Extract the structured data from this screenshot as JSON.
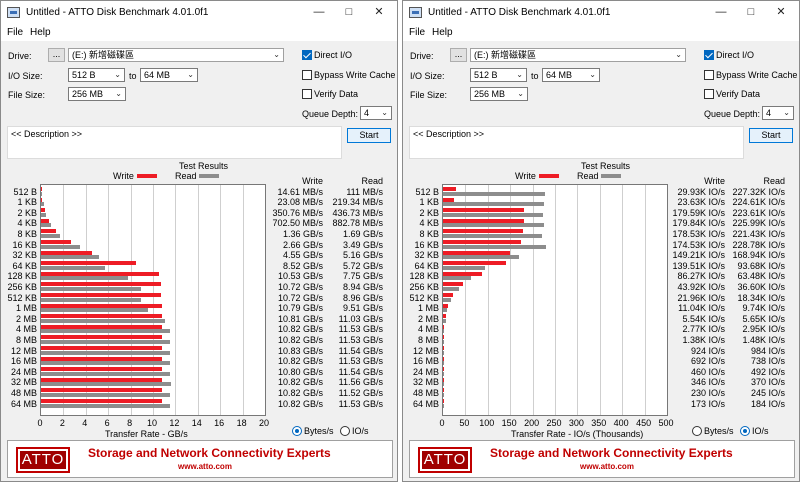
{
  "windows": [
    {
      "title": "Untitled - ATTO Disk Benchmark 4.01.0f1",
      "menu": [
        "File",
        "Help"
      ],
      "drive_label": "Drive:",
      "browse_label": "...",
      "drive_value": "(E:) 新增磁碟區",
      "io_size_label": "I/O Size:",
      "io_from": "512 B",
      "to_label": "to",
      "io_to": "64 MB",
      "file_size_label": "File Size:",
      "file_size": "256 MB",
      "direct_io": "Direct I/O",
      "bypass_cache": "Bypass Write Cache",
      "verify_data": "Verify Data",
      "queue_depth_label": "Queue Depth:",
      "queue_depth": "4",
      "description": "<< Description >>",
      "start": "Start",
      "results_title": "Test Results",
      "legend_write": "Write",
      "legend_read": "Read",
      "col_write": "Write",
      "col_read": "Read",
      "opt_bytes": "Bytes/s",
      "opt_io": "IO/s",
      "mode": "bytes",
      "chart_data": {
        "type": "bar",
        "categories": [
          "512 B",
          "1 KB",
          "2 KB",
          "4 KB",
          "8 KB",
          "16 KB",
          "32 KB",
          "64 KB",
          "128 KB",
          "256 KB",
          "512 KB",
          "1 MB",
          "2 MB",
          "4 MB",
          "8 MB",
          "12 MB",
          "16 MB",
          "24 MB",
          "32 MB",
          "48 MB",
          "64 MB"
        ],
        "xlabel": "Transfer Rate - GB/s",
        "xlim": [
          0,
          20
        ],
        "xticks": [
          "0",
          "2",
          "4",
          "6",
          "8",
          "10",
          "12",
          "14",
          "16",
          "18",
          "20"
        ],
        "series": [
          {
            "name": "Write",
            "values": [
              0.01461,
              0.02308,
              0.35076,
              0.7025,
              1.36,
              2.66,
              4.55,
              8.52,
              10.53,
              10.72,
              10.72,
              10.79,
              10.81,
              10.82,
              10.82,
              10.83,
              10.82,
              10.8,
              10.82,
              10.82,
              10.82
            ]
          },
          {
            "name": "Read",
            "values": [
              0.111,
              0.21934,
              0.43673,
              0.88278,
              1.69,
              3.49,
              5.16,
              5.72,
              7.75,
              8.94,
              8.96,
              9.51,
              11.03,
              11.53,
              11.53,
              11.54,
              11.53,
              11.54,
              11.56,
              11.52,
              11.53
            ]
          }
        ],
        "labels_write": [
          "14.61 MB/s",
          "23.08 MB/s",
          "350.76 MB/s",
          "702.50 MB/s",
          "1.36 GB/s",
          "2.66 GB/s",
          "4.55 GB/s",
          "8.52 GB/s",
          "10.53 GB/s",
          "10.72 GB/s",
          "10.72 GB/s",
          "10.79 GB/s",
          "10.81 GB/s",
          "10.82 GB/s",
          "10.82 GB/s",
          "10.83 GB/s",
          "10.82 GB/s",
          "10.80 GB/s",
          "10.82 GB/s",
          "10.82 GB/s",
          "10.82 GB/s"
        ],
        "labels_read": [
          "111 MB/s",
          "219.34 MB/s",
          "436.73 MB/s",
          "882.78 MB/s",
          "1.69 GB/s",
          "3.49 GB/s",
          "5.16 GB/s",
          "5.72 GB/s",
          "7.75 GB/s",
          "8.94 GB/s",
          "8.96 GB/s",
          "9.51 GB/s",
          "11.03 GB/s",
          "11.53 GB/s",
          "11.53 GB/s",
          "11.54 GB/s",
          "11.53 GB/s",
          "11.54 GB/s",
          "11.56 GB/s",
          "11.52 GB/s",
          "11.53 GB/s"
        ]
      },
      "banner_logo": "ATTO",
      "banner_tagline": "Storage and Network Connectivity Experts",
      "banner_url": "www.atto.com"
    },
    {
      "title": "Untitled - ATTO Disk Benchmark 4.01.0f1",
      "menu": [
        "File",
        "Help"
      ],
      "drive_label": "Drive:",
      "browse_label": "...",
      "drive_value": "(E:) 新增磁碟區",
      "io_size_label": "I/O Size:",
      "io_from": "512 B",
      "to_label": "to",
      "io_to": "64 MB",
      "file_size_label": "File Size:",
      "file_size": "256 MB",
      "direct_io": "Direct I/O",
      "bypass_cache": "Bypass Write Cache",
      "verify_data": "Verify Data",
      "queue_depth_label": "Queue Depth:",
      "queue_depth": "4",
      "description": "<< Description >>",
      "start": "Start",
      "results_title": "Test Results",
      "legend_write": "Write",
      "legend_read": "Read",
      "col_write": "Write",
      "col_read": "Read",
      "opt_bytes": "Bytes/s",
      "opt_io": "IO/s",
      "mode": "io",
      "chart_data": {
        "type": "bar",
        "categories": [
          "512 B",
          "1 KB",
          "2 KB",
          "4 KB",
          "8 KB",
          "16 KB",
          "32 KB",
          "64 KB",
          "128 KB",
          "256 KB",
          "512 KB",
          "1 MB",
          "2 MB",
          "4 MB",
          "8 MB",
          "12 MB",
          "16 MB",
          "24 MB",
          "32 MB",
          "48 MB",
          "64 MB"
        ],
        "xlabel": "Transfer Rate - IO/s (Thousands)",
        "xlim": [
          0,
          500
        ],
        "xticks": [
          "0",
          "50",
          "100",
          "150",
          "200",
          "250",
          "300",
          "350",
          "400",
          "450",
          "500"
        ],
        "series": [
          {
            "name": "Write",
            "values": [
              29.93,
              23.63,
              179.59,
              179.84,
              178.53,
              174.53,
              149.21,
              139.51,
              86.27,
              43.92,
              21.96,
              11.04,
              5.54,
              2.77,
              1.38,
              0.924,
              0.692,
              0.46,
              0.346,
              0.23,
              0.173
            ]
          },
          {
            "name": "Read",
            "values": [
              227.32,
              224.61,
              223.61,
              225.99,
              221.43,
              228.78,
              168.94,
              93.68,
              63.48,
              36.6,
              18.34,
              9.74,
              5.65,
              2.95,
              1.48,
              0.984,
              0.738,
              0.492,
              0.37,
              0.245,
              0.184
            ]
          }
        ],
        "labels_write": [
          "29.93K IO/s",
          "23.63K IO/s",
          "179.59K IO/s",
          "179.84K IO/s",
          "178.53K IO/s",
          "174.53K IO/s",
          "149.21K IO/s",
          "139.51K IO/s",
          "86.27K IO/s",
          "43.92K IO/s",
          "21.96K IO/s",
          "11.04K IO/s",
          "5.54K IO/s",
          "2.77K IO/s",
          "1.38K IO/s",
          "924 IO/s",
          "692 IO/s",
          "460 IO/s",
          "346 IO/s",
          "230 IO/s",
          "173 IO/s"
        ],
        "labels_read": [
          "227.32K IO/s",
          "224.61K IO/s",
          "223.61K IO/s",
          "225.99K IO/s",
          "221.43K IO/s",
          "228.78K IO/s",
          "168.94K IO/s",
          "93.68K IO/s",
          "63.48K IO/s",
          "36.60K IO/s",
          "18.34K IO/s",
          "9.74K IO/s",
          "5.65K IO/s",
          "2.95K IO/s",
          "1.48K IO/s",
          "984 IO/s",
          "738 IO/s",
          "492 IO/s",
          "370 IO/s",
          "245 IO/s",
          "184 IO/s"
        ]
      },
      "banner_logo": "ATTO",
      "banner_tagline": "Storage and Network Connectivity Experts",
      "banner_url": "www.atto.com"
    }
  ],
  "colors": {
    "write": "#ee1c25",
    "read": "#8d8d8d",
    "brand": "#c00000"
  }
}
